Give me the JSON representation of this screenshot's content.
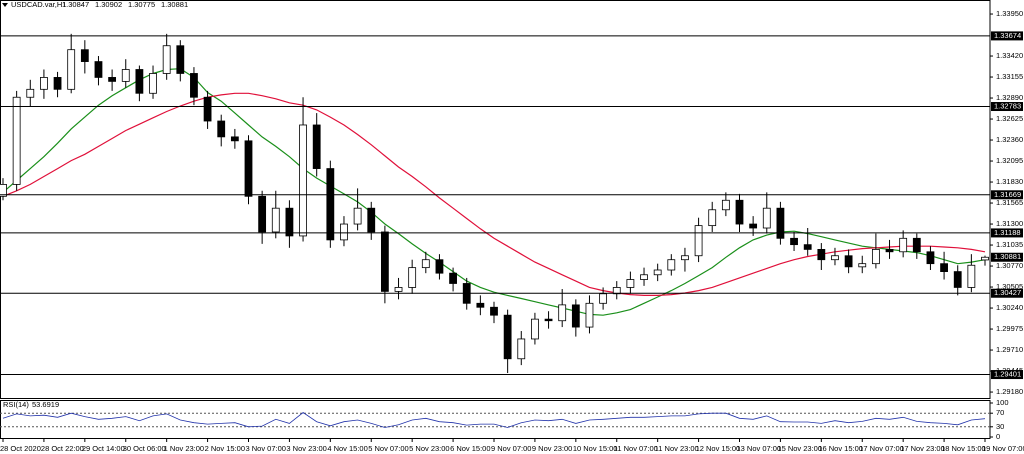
{
  "chart_data": [
    {
      "type": "candlestick",
      "title": "USDCAD.var,H1",
      "categories": [
        "28 Oct 2020",
        null,
        null,
        "28 Oct 22:00",
        null,
        null,
        "29 Oct 14:00",
        null,
        null,
        "30 Oct 06:00",
        null,
        null,
        "1 Nov 23:00",
        null,
        null,
        "2 Nov 15:00",
        null,
        null,
        "3 Nov 07:00",
        null,
        null,
        "3 Nov 23:00",
        null,
        null,
        "4 Nov 15:00",
        null,
        null,
        "5 Nov 07:00",
        null,
        null,
        "5 Nov 23:00",
        null,
        null,
        "6 Nov 15:00",
        null,
        null,
        "9 Nov 07:00",
        null,
        null,
        "9 Nov 23:00",
        null,
        null,
        "10 Nov 15:00",
        null,
        null,
        "11 Nov 07:00",
        null,
        null,
        "11 Nov 23:00",
        null,
        null,
        "12 Nov 15:00",
        null,
        null,
        "13 Nov 07:00",
        null,
        null,
        "15 Nov 23:00",
        null,
        null,
        "16 Nov 15:00",
        null,
        null,
        "17 Nov 07:00",
        null,
        null,
        "17 Nov 23:00",
        null,
        null,
        "18 Nov 15:00",
        null,
        null,
        "19 Nov 07:00"
      ],
      "open": [
        1.3165,
        1.318,
        1.329,
        1.33,
        1.3315,
        1.33,
        1.335,
        1.3335,
        1.3315,
        1.331,
        1.3325,
        1.3295,
        1.332,
        1.3355,
        1.332,
        1.329,
        1.326,
        1.324,
        1.3235,
        1.3165,
        1.312,
        1.315,
        1.3115,
        1.3255,
        1.32,
        1.311,
        1.313,
        1.315,
        1.312,
        1.3045,
        1.305,
        1.3075,
        1.3085,
        1.3068,
        1.3055,
        1.303,
        1.3025,
        1.3015,
        1.296,
        1.2985,
        1.301,
        1.3008,
        1.3028,
        1.3,
        1.303,
        1.3042,
        1.305,
        1.306,
        1.3066,
        1.3072,
        1.3085,
        1.309,
        1.3128,
        1.3148,
        1.316,
        1.313,
        1.3125,
        1.315,
        1.3112,
        1.3104,
        1.3098,
        1.3085,
        1.309,
        1.3076,
        1.308,
        1.3098,
        1.3095,
        1.3112,
        1.3095,
        1.308,
        1.307,
        1.305,
        1.30847
      ],
      "high": [
        1.3188,
        1.3298,
        1.3312,
        1.3325,
        1.3322,
        1.337,
        1.3362,
        1.3342,
        1.3325,
        1.3338,
        1.333,
        1.333,
        1.337,
        1.3362,
        1.3328,
        1.3298,
        1.3268,
        1.325,
        1.3242,
        1.3172,
        1.3172,
        1.316,
        1.329,
        1.327,
        1.321,
        1.314,
        1.3175,
        1.3158,
        1.3128,
        1.3062,
        1.3085,
        1.3095,
        1.3092,
        1.3075,
        1.3062,
        1.304,
        1.3032,
        1.3022,
        1.2995,
        1.3018,
        1.302,
        1.3048,
        1.3035,
        1.304,
        1.305,
        1.3058,
        1.307,
        1.3075,
        1.308,
        1.3092,
        1.31,
        1.3138,
        1.3158,
        1.317,
        1.3168,
        1.314,
        1.317,
        1.3158,
        1.312,
        1.3125,
        1.3106,
        1.31,
        1.3098,
        1.309,
        1.3118,
        1.311,
        1.3122,
        1.3118,
        1.3102,
        1.3095,
        1.3078,
        1.3092,
        1.30902
      ],
      "low": [
        1.316,
        1.3172,
        1.3278,
        1.3288,
        1.329,
        1.3295,
        1.332,
        1.3305,
        1.3298,
        1.3302,
        1.3285,
        1.3288,
        1.3312,
        1.331,
        1.328,
        1.325,
        1.3228,
        1.3225,
        1.3155,
        1.3105,
        1.3112,
        1.31,
        1.3108,
        1.319,
        1.31,
        1.3102,
        1.3122,
        1.311,
        1.303,
        1.3035,
        1.3042,
        1.3068,
        1.306,
        1.3045,
        1.3022,
        1.3015,
        1.3005,
        1.2942,
        1.2952,
        1.2978,
        1.2998,
        1.3,
        1.2988,
        1.2992,
        1.3022,
        1.3035,
        1.3042,
        1.3052,
        1.3058,
        1.3065,
        1.307,
        1.3082,
        1.312,
        1.314,
        1.312,
        1.3115,
        1.3118,
        1.3104,
        1.3096,
        1.309,
        1.3072,
        1.3078,
        1.3068,
        1.3068,
        1.3074,
        1.3086,
        1.3088,
        1.3086,
        1.3072,
        1.306,
        1.304,
        1.3044,
        1.30775
      ],
      "close": [
        1.318,
        1.329,
        1.33,
        1.3315,
        1.33,
        1.335,
        1.3335,
        1.3315,
        1.331,
        1.3325,
        1.3295,
        1.332,
        1.3355,
        1.332,
        1.329,
        1.326,
        1.324,
        1.3235,
        1.3165,
        1.312,
        1.315,
        1.3115,
        1.3255,
        1.32,
        1.311,
        1.313,
        1.315,
        1.312,
        1.3045,
        1.305,
        1.3075,
        1.3085,
        1.3068,
        1.3055,
        1.303,
        1.3025,
        1.3015,
        1.296,
        1.2985,
        1.301,
        1.3008,
        1.3028,
        1.3,
        1.303,
        1.3042,
        1.305,
        1.306,
        1.3066,
        1.3072,
        1.3085,
        1.309,
        1.3128,
        1.3148,
        1.316,
        1.313,
        1.3125,
        1.315,
        1.3112,
        1.3104,
        1.3098,
        1.3085,
        1.309,
        1.3076,
        1.308,
        1.3098,
        1.3095,
        1.3112,
        1.3095,
        1.308,
        1.307,
        1.305,
        1.3078,
        1.30881
      ],
      "series": [
        {
          "color": "#1a8f1a",
          "values": [
            1.317,
            1.3185,
            1.32,
            1.3215,
            1.3232,
            1.325,
            1.3265,
            1.328,
            1.3292,
            1.3302,
            1.3312,
            1.332,
            1.3325,
            1.3326,
            1.3315,
            1.3296,
            1.3285,
            1.327,
            1.3255,
            1.324,
            1.3228,
            1.3215,
            1.32,
            1.3188,
            1.3178,
            1.3168,
            1.3158,
            1.3145,
            1.313,
            1.3118,
            1.3105,
            1.3093,
            1.3082,
            1.307,
            1.3058,
            1.305,
            1.3044,
            1.304,
            1.3036,
            1.3032,
            1.3028,
            1.3024,
            1.302,
            1.3016,
            1.3015,
            1.3018,
            1.3022,
            1.303,
            1.3038,
            1.3046,
            1.3055,
            1.3065,
            1.3075,
            1.3088,
            1.31,
            1.311,
            1.3116,
            1.312,
            1.3121,
            1.3118,
            1.3114,
            1.311,
            1.3106,
            1.3102,
            1.31,
            1.3098,
            1.3096,
            1.3094,
            1.309,
            1.3085,
            1.308,
            1.3082,
            1.3085
          ]
        },
        {
          "color": "#e0103a",
          "values": [
            1.3165,
            1.3172,
            1.318,
            1.319,
            1.32,
            1.321,
            1.3218,
            1.3228,
            1.3238,
            1.3248,
            1.3256,
            1.3264,
            1.3272,
            1.3279,
            1.3285,
            1.329,
            1.3293,
            1.3295,
            1.3295,
            1.3292,
            1.3288,
            1.3283,
            1.328,
            1.3274,
            1.3265,
            1.3255,
            1.3243,
            1.323,
            1.3216,
            1.3202,
            1.319,
            1.3177,
            1.3163,
            1.315,
            1.3137,
            1.3124,
            1.3112,
            1.3102,
            1.3092,
            1.3082,
            1.3074,
            1.3066,
            1.3058,
            1.305,
            1.3046,
            1.3043,
            1.3041,
            1.304,
            1.304,
            1.3041,
            1.3043,
            1.3046,
            1.305,
            1.3056,
            1.3062,
            1.3068,
            1.3074,
            1.308,
            1.3085,
            1.3089,
            1.3092,
            1.3095,
            1.3097,
            1.3099,
            1.31,
            1.3101,
            1.3102,
            1.3102,
            1.3102,
            1.3101,
            1.31,
            1.3098,
            1.3095
          ]
        }
      ],
      "levels": [
        1.33674,
        1.32783,
        1.31669,
        1.31188,
        1.30427,
        1.29401
      ],
      "ylim": [
        1.29105,
        1.34127
      ],
      "yticks": [
        {
          "value": 1.3395,
          "label": "1.33950"
        },
        {
          "value": 1.3342,
          "label": "1.33420"
        },
        1.33155,
        {
          "value": 1.3289,
          "label": "1.32890"
        },
        1.32625,
        {
          "value": 1.3236,
          "label": "1.32360"
        },
        1.32095,
        {
          "value": 1.3183,
          "label": "1.31830"
        },
        1.31565,
        {
          "value": 1.313,
          "label": "1.31300"
        },
        1.31035,
        {
          "value": 1.3077,
          "label": "1.30770"
        },
        1.30505,
        {
          "value": 1.3024,
          "label": "1.30240"
        },
        1.29975,
        {
          "value": 1.2971,
          "label": "1.29710"
        },
        1.29445,
        {
          "value": 1.2918,
          "label": "1.29180"
        }
      ]
    },
    {
      "type": "line",
      "title": "RSI(14)",
      "color": "#2233aa",
      "values": [
        55,
        68,
        62,
        64,
        58,
        70,
        60,
        52,
        55,
        60,
        48,
        62,
        68,
        50,
        42,
        38,
        40,
        42,
        30,
        32,
        52,
        40,
        72,
        45,
        33,
        45,
        50,
        40,
        28,
        36,
        50,
        55,
        45,
        42,
        35,
        38,
        38,
        28,
        42,
        50,
        48,
        52,
        40,
        50,
        52,
        55,
        58,
        58,
        60,
        62,
        62,
        68,
        70,
        70,
        55,
        52,
        62,
        45,
        44,
        44,
        40,
        48,
        42,
        46,
        55,
        52,
        58,
        46,
        42,
        40,
        36,
        50,
        53.6919
      ],
      "ylim": [
        0,
        100
      ],
      "yticks": [
        100,
        70,
        30,
        0
      ]
    }
  ]
}
